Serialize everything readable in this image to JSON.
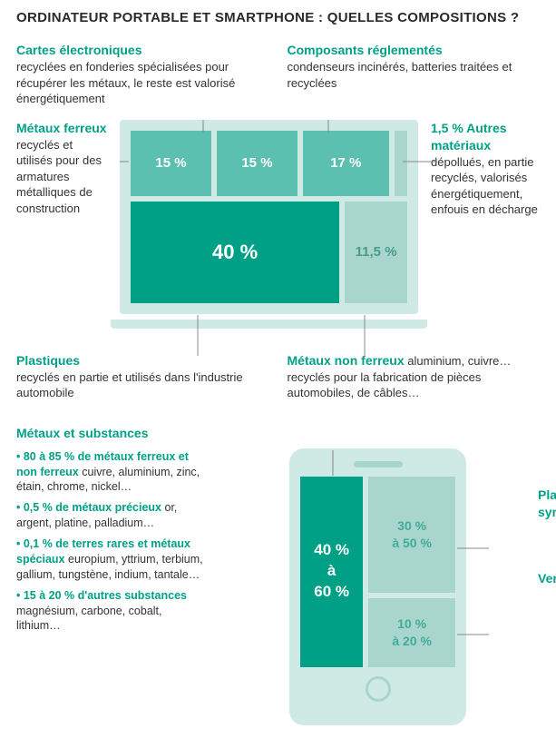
{
  "title": "ORDINATEUR PORTABLE ET SMARTPHONE : QUELLES COMPOSITIONS ?",
  "colors": {
    "teal_dark": "#00a087",
    "teal_mid": "#5bc0af",
    "teal_light": "#a8d6cd",
    "frame": "#cfe9e4",
    "text": "#333333"
  },
  "laptop": {
    "top_left": {
      "h": "Cartes électroniques",
      "d": "recyclées en fonderies spécialisées pour récupérer les métaux, le reste est valorisé énergétiquement"
    },
    "top_right": {
      "h": "Composants réglementés",
      "d": "condenseurs incinérés, batteries traitées et recyclées"
    },
    "left": {
      "h": "Métaux ferreux",
      "d": "recyclés et utilisés pour des armatures métalliques de construction"
    },
    "right": {
      "h": "1,5 % Autres matériaux",
      "d": "dépollués, en partie recyclés, valorisés énergétiquement, enfouis en décharge"
    },
    "bottom_left": {
      "h": "Plastiques",
      "d": "recyclés en partie et utilisés dans l'industrie automobile"
    },
    "bottom_right": {
      "h": "Métaux non ferreux",
      "d_pre": "aluminium, cuivre…recyclés pour la fabrication de pièces automobiles, de câbles…"
    },
    "cells": {
      "metaux_ferreux": {
        "pct": "15 %",
        "w": 0.31,
        "color": "#5bc0af"
      },
      "cartes": {
        "pct": "15 %",
        "w": 0.31,
        "color": "#5bc0af"
      },
      "composants": {
        "pct": "17 %",
        "w": 0.33,
        "color": "#5bc0af"
      },
      "autres": {
        "pct": "",
        "w": 0.05,
        "color": "#a8d6cd"
      },
      "plastiques": {
        "pct": "40 %",
        "w": 0.77,
        "color": "#00a087"
      },
      "non_ferreux": {
        "pct": "11,5 %",
        "w": 0.23,
        "color": "#a8d6cd"
      }
    }
  },
  "phone": {
    "header": {
      "h": "Métaux et substances"
    },
    "bullets": [
      {
        "b": "• 80 à 85 % de métaux ferreux et non ferreux",
        "t": " cuivre, aluminium, zinc, étain, chrome, nickel…"
      },
      {
        "b": "• 0,5 % de métaux précieux",
        "t": " or, argent, platine, palladium…"
      },
      {
        "b": "• 0,1 % de terres rares et métaux spéciaux",
        "t": " europium, yttrium, terbium, gallium, tungstène, indium, tantale…"
      },
      {
        "b": "• 15 à 20 % d'autres substances",
        "t": " magnésium, carbone, cobalt, lithium…"
      }
    ],
    "cells": {
      "metaux": {
        "pct": "40 %\nà\n60 %",
        "w": 0.42,
        "h": 1.0,
        "color": "#00a087"
      },
      "plastiques": {
        "pct": "30 %\nà 50 %",
        "w": 0.58,
        "h": 0.63,
        "color": "#a8d6cd"
      },
      "verre": {
        "pct": "10 %\nà 20 %",
        "w": 0.58,
        "h": 0.37,
        "color": "#a8d6cd"
      }
    },
    "side": {
      "plastiques": {
        "h": "Plastiques et matières synthétiques"
      },
      "verre": {
        "h": "Verre et céramique"
      }
    }
  }
}
